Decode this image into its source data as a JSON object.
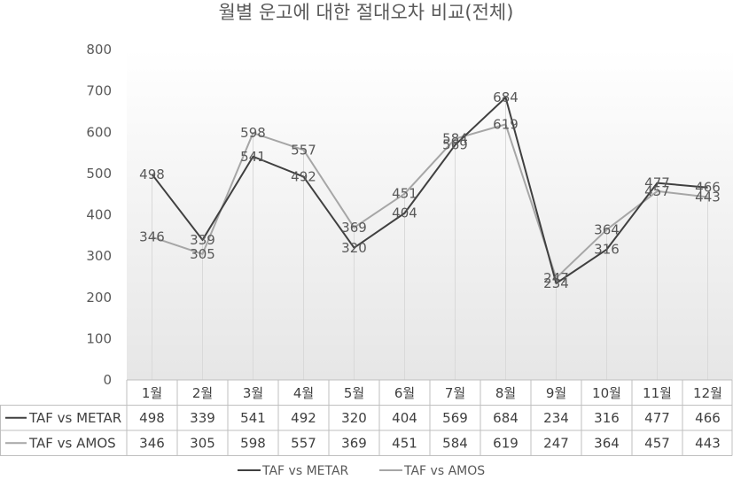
{
  "chart_data": {
    "type": "line",
    "title": "월별 운고에 대한 절대오차 비교(전체)",
    "categories": [
      "1월",
      "2월",
      "3월",
      "4월",
      "5월",
      "6월",
      "7월",
      "8월",
      "9월",
      "10월",
      "11월",
      "12월"
    ],
    "series": [
      {
        "name": "TAF vs METAR",
        "color": "#404040",
        "values": [
          498,
          339,
          541,
          492,
          320,
          404,
          569,
          684,
          234,
          316,
          477,
          466
        ]
      },
      {
        "name": "TAF vs AMOS",
        "color": "#a6a6a6",
        "values": [
          346,
          305,
          598,
          557,
          369,
          451,
          584,
          619,
          247,
          364,
          457,
          443
        ]
      }
    ],
    "ylim": [
      0,
      800
    ],
    "yticks": [
      0,
      100,
      200,
      300,
      400,
      500,
      600,
      700,
      800
    ],
    "grid": false,
    "data_table": true,
    "legend_position": "bottom"
  }
}
